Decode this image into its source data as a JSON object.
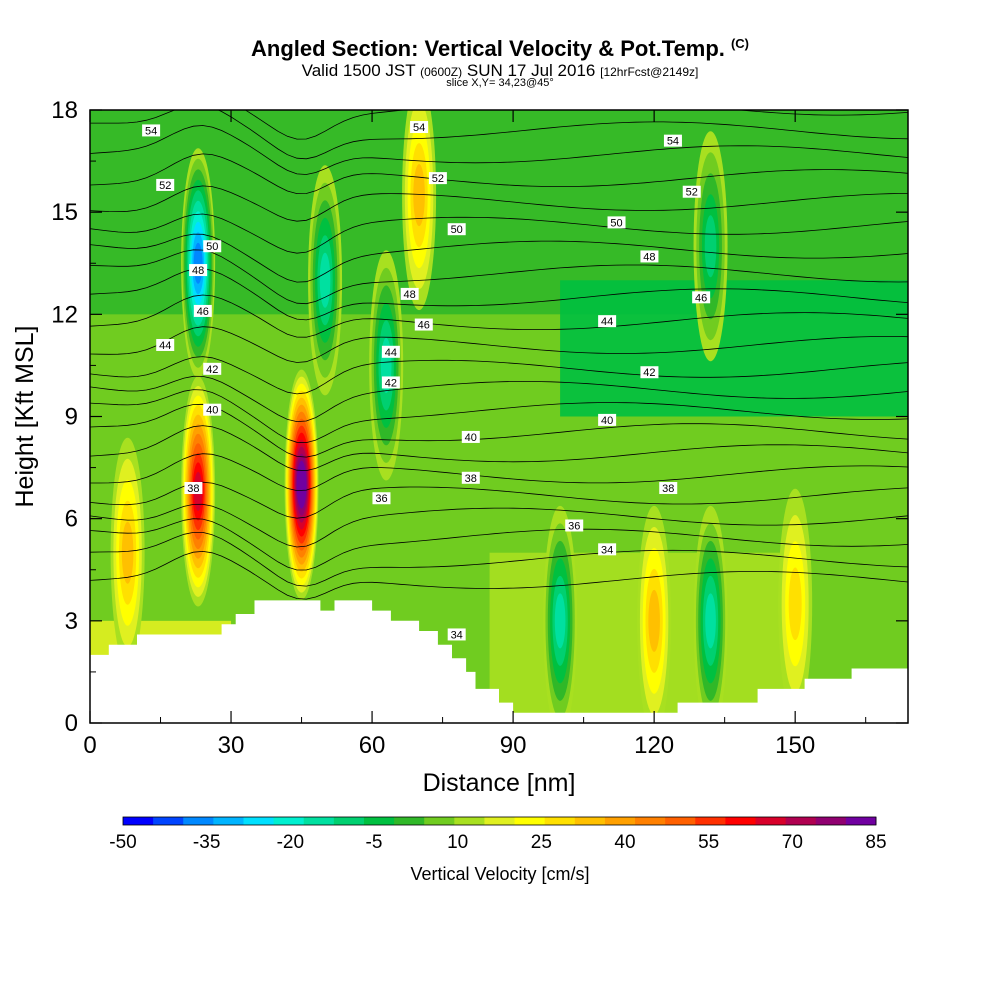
{
  "title": "Angled Section: Vertical Velocity & Pot.Temp.",
  "title_units": "(C)",
  "subtitle": {
    "valid_prefix": "Valid 1500 JST",
    "utc": "(0600Z)",
    "date": "SUN 17 Jul 2016",
    "forecast": "[12hrFcst@2149z]"
  },
  "slice_label": "slice X,Y= 34,23@45°",
  "chart_data": {
    "type": "heatmap",
    "title": "Angled Section: Vertical Velocity & Pot.Temp.",
    "xlabel": "Distance [nm]",
    "ylabel": "Height [Kft MSL]",
    "xlim": [
      0,
      174
    ],
    "ylim": [
      0,
      18
    ],
    "xticks": [
      0,
      30,
      60,
      90,
      120,
      150
    ],
    "yticks": [
      0,
      3,
      6,
      9,
      12,
      15,
      18
    ],
    "colorbar": {
      "label": "Vertical Velocity [cm/s]",
      "min": -50,
      "max": 85,
      "step": 5,
      "tick_labels": [
        "-50",
        "-35",
        "-20",
        "-5",
        "10",
        "25",
        "40",
        "55",
        "70",
        "85"
      ],
      "colors": [
        "#0000ff",
        "#0044ff",
        "#0088ff",
        "#00b4ff",
        "#00e0ff",
        "#00f0d0",
        "#00e0a0",
        "#00d070",
        "#00c040",
        "#30b828",
        "#70cc20",
        "#a8e020",
        "#e0f020",
        "#ffff00",
        "#ffe000",
        "#ffc000",
        "#ffa000",
        "#ff8000",
        "#ff6000",
        "#ff3000",
        "#ff0000",
        "#d8002a",
        "#b00050",
        "#900070",
        "#7000a0"
      ]
    },
    "velocity_features": [
      {
        "x": 8,
        "y": 5.0,
        "value": 25
      },
      {
        "x": 23,
        "y": 6.8,
        "value": 55
      },
      {
        "x": 23,
        "y": 13.5,
        "value": -40
      },
      {
        "x": 45,
        "y": 7.0,
        "value": 75
      },
      {
        "x": 50,
        "y": 13.0,
        "value": -20
      },
      {
        "x": 63,
        "y": 10.5,
        "value": -20
      },
      {
        "x": 70,
        "y": 15.5,
        "value": 25
      },
      {
        "x": 100,
        "y": 3.0,
        "value": -20
      },
      {
        "x": 120,
        "y": 3.0,
        "value": 25
      },
      {
        "x": 132,
        "y": 3.0,
        "value": -20
      },
      {
        "x": 132,
        "y": 14.0,
        "value": -15
      },
      {
        "x": 150,
        "y": 3.5,
        "value": 20
      }
    ],
    "theta_contour_labels": [
      {
        "text": "54",
        "x": 13,
        "y": 17.4
      },
      {
        "text": "52",
        "x": 16,
        "y": 15.8
      },
      {
        "text": "50",
        "x": 26,
        "y": 14.0
      },
      {
        "text": "48",
        "x": 23,
        "y": 13.3
      },
      {
        "text": "46",
        "x": 24,
        "y": 12.1
      },
      {
        "text": "44",
        "x": 16,
        "y": 11.1
      },
      {
        "text": "42",
        "x": 26,
        "y": 10.4
      },
      {
        "text": "40",
        "x": 26,
        "y": 9.2
      },
      {
        "text": "38",
        "x": 22,
        "y": 6.9
      },
      {
        "text": "36",
        "x": 62,
        "y": 6.6
      },
      {
        "text": "54",
        "x": 70,
        "y": 17.5
      },
      {
        "text": "52",
        "x": 74,
        "y": 16.0
      },
      {
        "text": "50",
        "x": 78,
        "y": 14.5
      },
      {
        "text": "48",
        "x": 68,
        "y": 12.6
      },
      {
        "text": "46",
        "x": 71,
        "y": 11.7
      },
      {
        "text": "44",
        "x": 64,
        "y": 10.9
      },
      {
        "text": "42",
        "x": 64,
        "y": 10.0
      },
      {
        "text": "40",
        "x": 81,
        "y": 8.4
      },
      {
        "text": "38",
        "x": 81,
        "y": 7.2
      },
      {
        "text": "50",
        "x": 112,
        "y": 14.7
      },
      {
        "text": "48",
        "x": 119,
        "y": 13.7
      },
      {
        "text": "44",
        "x": 110,
        "y": 11.8
      },
      {
        "text": "42",
        "x": 119,
        "y": 10.3
      },
      {
        "text": "40",
        "x": 110,
        "y": 8.9
      },
      {
        "text": "36",
        "x": 103,
        "y": 5.8
      },
      {
        "text": "34",
        "x": 110,
        "y": 5.1
      },
      {
        "text": "54",
        "x": 124,
        "y": 17.1
      },
      {
        "text": "52",
        "x": 128,
        "y": 15.6
      },
      {
        "text": "46",
        "x": 130,
        "y": 12.5
      },
      {
        "text": "38",
        "x": 123,
        "y": 6.9
      },
      {
        "text": "34",
        "x": 78,
        "y": 2.6
      }
    ],
    "terrain_profile": {
      "x": [
        0,
        4,
        4,
        10,
        10,
        28,
        28,
        31,
        31,
        35,
        35,
        49,
        49,
        52,
        52,
        60,
        60,
        64,
        64,
        70,
        70,
        74,
        74,
        77,
        77,
        80,
        80,
        82,
        82,
        87,
        87,
        90,
        90,
        125,
        125,
        142,
        142,
        152,
        152,
        162,
        162,
        174
      ],
      "y": [
        2.0,
        2.0,
        2.3,
        2.3,
        2.6,
        2.6,
        2.9,
        2.9,
        3.2,
        3.2,
        3.6,
        3.6,
        3.3,
        3.3,
        3.6,
        3.6,
        3.3,
        3.3,
        3.0,
        3.0,
        2.7,
        2.7,
        2.3,
        2.3,
        1.9,
        1.9,
        1.5,
        1.5,
        1.0,
        1.0,
        0.6,
        0.6,
        0.3,
        0.3,
        0.6,
        0.6,
        1.0,
        1.0,
        1.3,
        1.3,
        1.6,
        1.6
      ]
    }
  }
}
